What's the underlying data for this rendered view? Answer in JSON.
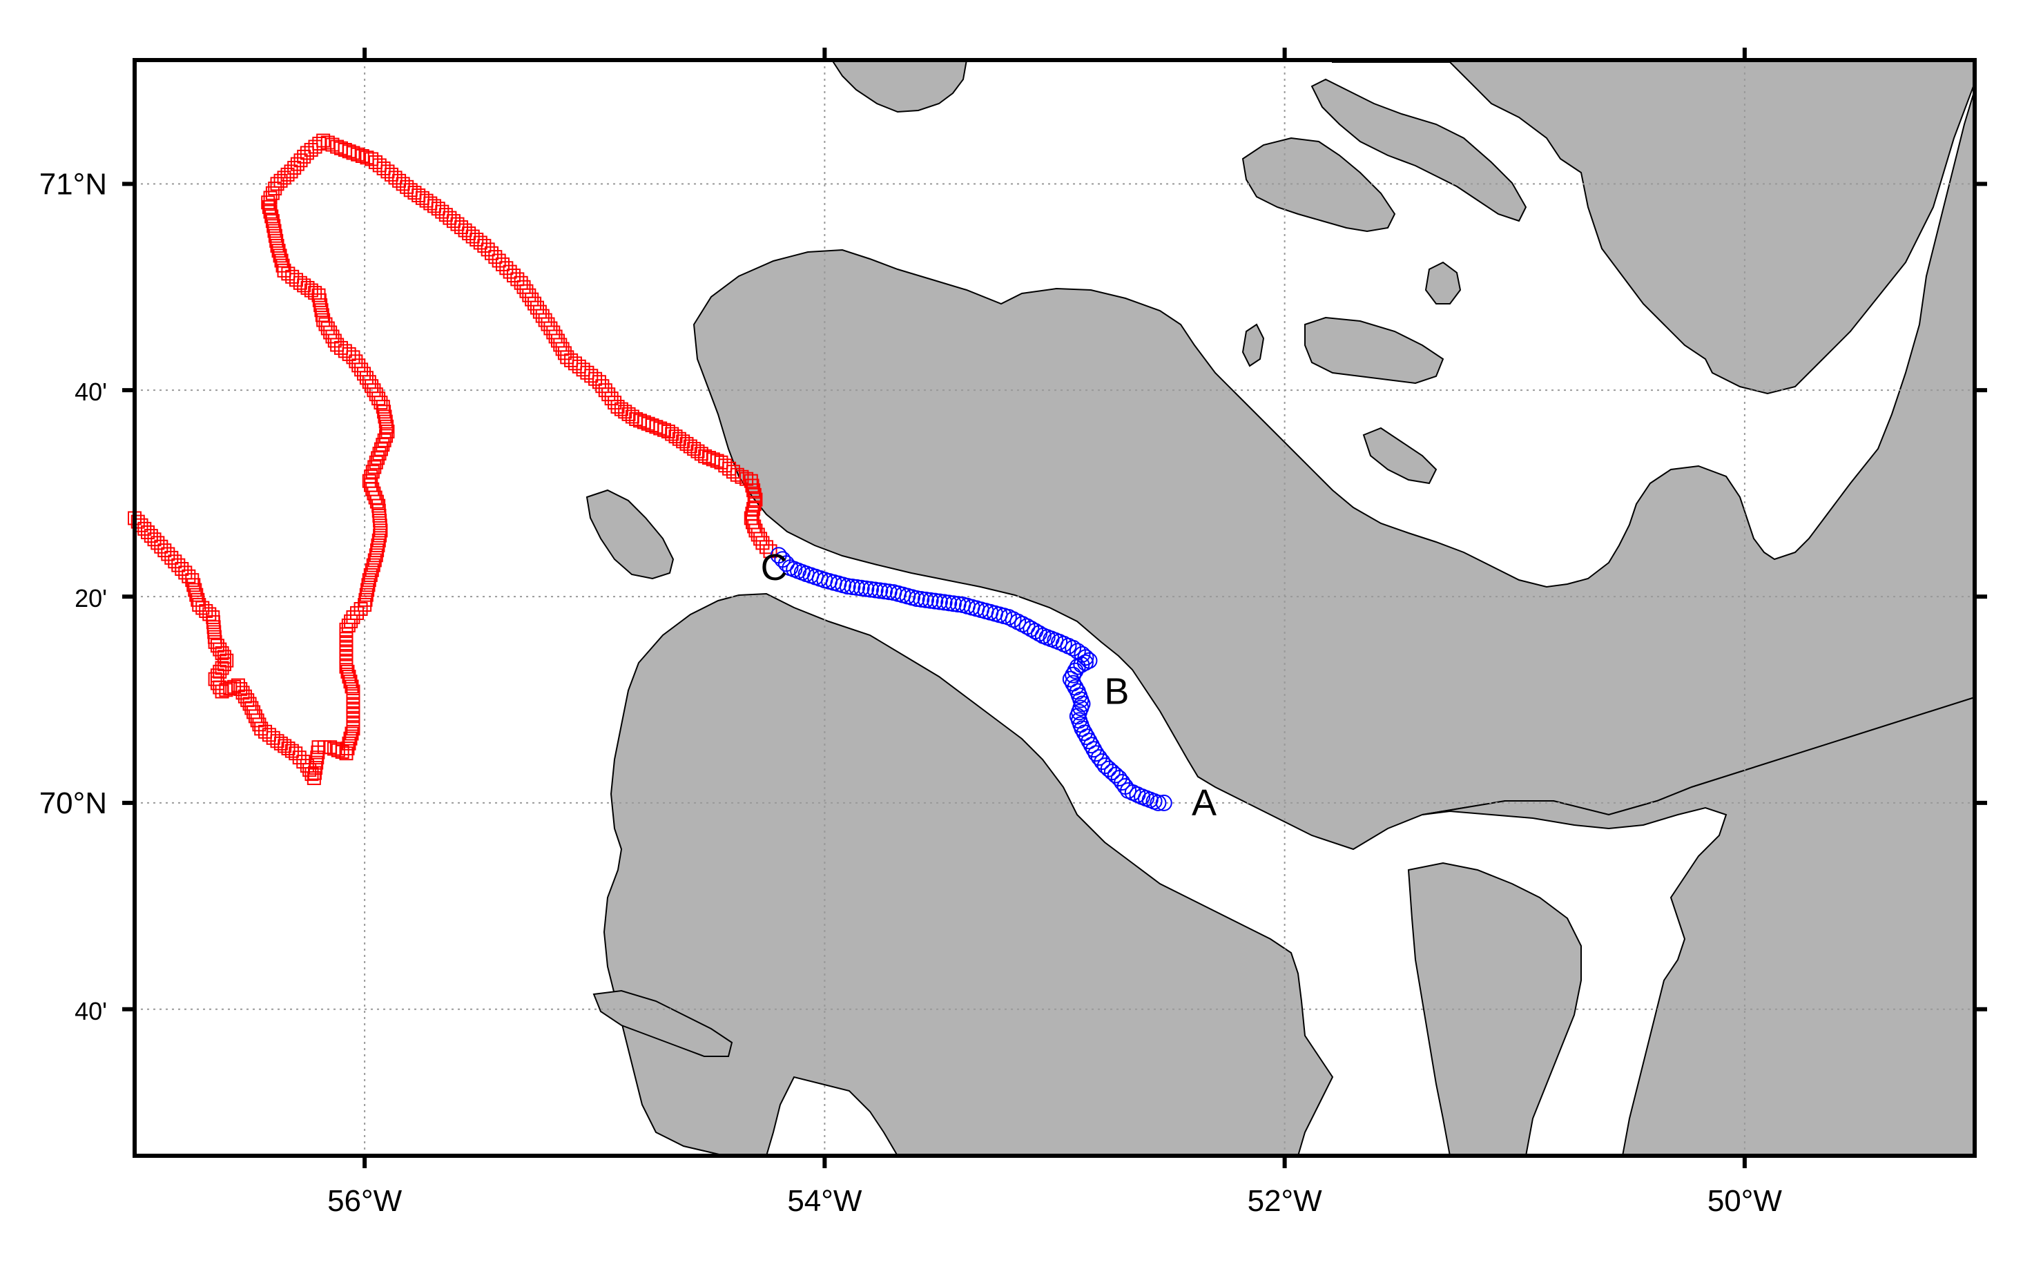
{
  "map": {
    "region_extent": {
      "lon_min": -57.0,
      "lon_max": -49.0,
      "lat_min": 69.43,
      "lat_max": 71.2
    },
    "x_ticks": [
      {
        "lon": -56,
        "label": "56°W"
      },
      {
        "lon": -54,
        "label": "54°W"
      },
      {
        "lon": -52,
        "label": "52°W"
      },
      {
        "lon": -50,
        "label": "50°W"
      }
    ],
    "y_ticks": [
      {
        "lat": 71.0,
        "label": "71°N",
        "style": "major"
      },
      {
        "lat": 70.6667,
        "label": "40'",
        "style": "minor"
      },
      {
        "lat": 70.3333,
        "label": "20'",
        "style": "minor"
      },
      {
        "lat": 70.0,
        "label": "70°N",
        "style": "major"
      },
      {
        "lat": 69.6667,
        "label": "40'",
        "style": "minor"
      }
    ],
    "grid": "dotted",
    "colors": {
      "land": "#b3b3b3",
      "water": "#ffffff",
      "track_red": "#ff0000",
      "track_blue": "#0000ff",
      "frame": "#000000",
      "grid": "#999999"
    },
    "annotations": [
      {
        "text": "A",
        "lon": -52.35,
        "lat": 70.0
      },
      {
        "text": "B",
        "lon": -52.73,
        "lat": 70.18
      },
      {
        "text": "C",
        "lon": -54.22,
        "lat": 70.38
      }
    ],
    "tracks": [
      {
        "color_key": "track_red",
        "marker": "square",
        "points": [
          [
            -57.0,
            70.46
          ],
          [
            -56.9,
            70.42
          ],
          [
            -56.75,
            70.36
          ],
          [
            -56.72,
            70.32
          ],
          [
            -56.66,
            70.3
          ],
          [
            -56.65,
            70.26
          ],
          [
            -56.6,
            70.23
          ],
          [
            -56.65,
            70.2
          ],
          [
            -56.62,
            70.18
          ],
          [
            -56.55,
            70.19
          ],
          [
            -56.5,
            70.16
          ],
          [
            -56.45,
            70.12
          ],
          [
            -56.38,
            70.1
          ],
          [
            -56.3,
            70.08
          ],
          [
            -56.25,
            70.06
          ],
          [
            -56.22,
            70.04
          ],
          [
            -56.2,
            70.09
          ],
          [
            -56.15,
            70.09
          ],
          [
            -56.08,
            70.08
          ],
          [
            -56.05,
            70.12
          ],
          [
            -56.05,
            70.18
          ],
          [
            -56.08,
            70.22
          ],
          [
            -56.08,
            70.28
          ],
          [
            -56.05,
            70.3
          ],
          [
            -56.0,
            70.32
          ],
          [
            -55.98,
            70.36
          ],
          [
            -55.95,
            70.4
          ],
          [
            -55.93,
            70.44
          ],
          [
            -55.94,
            70.48
          ],
          [
            -55.96,
            70.5
          ],
          [
            -55.98,
            70.52
          ],
          [
            -55.95,
            70.55
          ],
          [
            -55.9,
            70.6
          ],
          [
            -55.92,
            70.64
          ],
          [
            -55.95,
            70.66
          ],
          [
            -55.98,
            70.68
          ],
          [
            -56.05,
            70.72
          ],
          [
            -56.12,
            70.74
          ],
          [
            -56.18,
            70.78
          ],
          [
            -56.2,
            70.82
          ],
          [
            -56.28,
            70.84
          ],
          [
            -56.35,
            70.86
          ],
          [
            -56.38,
            70.9
          ],
          [
            -56.4,
            70.94
          ],
          [
            -56.42,
            70.97
          ],
          [
            -56.38,
            71.0
          ],
          [
            -56.32,
            71.02
          ],
          [
            -56.25,
            71.05
          ],
          [
            -56.18,
            71.07
          ],
          [
            -56.12,
            71.06
          ],
          [
            -56.05,
            71.05
          ],
          [
            -55.97,
            71.04
          ],
          [
            -55.9,
            71.02
          ],
          [
            -55.8,
            70.99
          ],
          [
            -55.68,
            70.96
          ],
          [
            -55.58,
            70.93
          ],
          [
            -55.48,
            70.9
          ],
          [
            -55.4,
            70.87
          ],
          [
            -55.32,
            70.84
          ],
          [
            -55.25,
            70.8
          ],
          [
            -55.18,
            70.76
          ],
          [
            -55.12,
            70.72
          ],
          [
            -55.05,
            70.7
          ],
          [
            -54.98,
            70.68
          ],
          [
            -54.9,
            70.64
          ],
          [
            -54.82,
            70.62
          ],
          [
            -54.75,
            70.61
          ],
          [
            -54.68,
            70.6
          ],
          [
            -54.6,
            70.58
          ],
          [
            -54.52,
            70.56
          ],
          [
            -54.45,
            70.55
          ],
          [
            -54.38,
            70.53
          ],
          [
            -54.32,
            70.52
          ],
          [
            -54.3,
            70.49
          ],
          [
            -54.32,
            70.46
          ],
          [
            -54.3,
            70.44
          ],
          [
            -54.27,
            70.42
          ],
          [
            -54.22,
            70.4
          ]
        ]
      },
      {
        "color_key": "track_blue",
        "marker": "circle",
        "points": [
          [
            -54.2,
            70.4
          ],
          [
            -54.15,
            70.38
          ],
          [
            -54.08,
            70.37
          ],
          [
            -54.0,
            70.36
          ],
          [
            -53.9,
            70.35
          ],
          [
            -53.8,
            70.345
          ],
          [
            -53.7,
            70.34
          ],
          [
            -53.6,
            70.33
          ],
          [
            -53.5,
            70.325
          ],
          [
            -53.4,
            70.32
          ],
          [
            -53.3,
            70.31
          ],
          [
            -53.2,
            70.3
          ],
          [
            -53.12,
            70.285
          ],
          [
            -53.05,
            70.27
          ],
          [
            -52.98,
            70.26
          ],
          [
            -52.92,
            70.25
          ],
          [
            -52.88,
            70.24
          ],
          [
            -52.85,
            70.23
          ],
          [
            -52.9,
            70.22
          ],
          [
            -52.93,
            70.2
          ],
          [
            -52.9,
            70.18
          ],
          [
            -52.88,
            70.16
          ],
          [
            -52.9,
            70.14
          ],
          [
            -52.88,
            70.12
          ],
          [
            -52.85,
            70.1
          ],
          [
            -52.82,
            70.08
          ],
          [
            -52.78,
            70.06
          ],
          [
            -52.72,
            70.04
          ],
          [
            -52.68,
            70.02
          ],
          [
            -52.62,
            70.01
          ],
          [
            -52.55,
            70.0
          ],
          [
            -52.5,
            70.0
          ]
        ]
      }
    ]
  }
}
